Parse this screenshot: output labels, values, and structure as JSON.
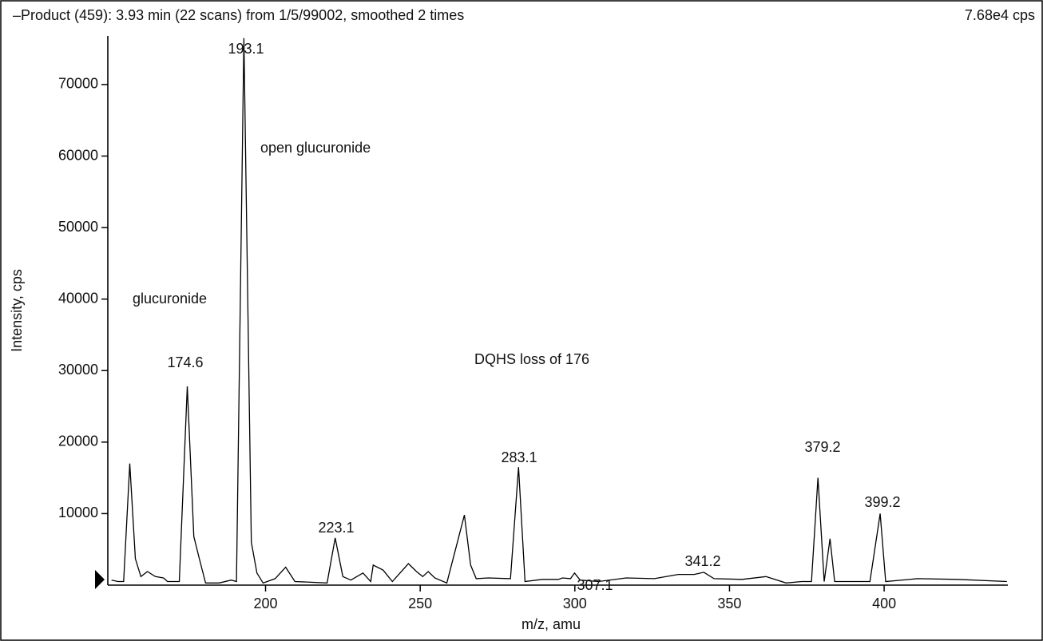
{
  "chart_data": {
    "type": "line",
    "title": "–Product (459): 3.93 min (22 scans) from 1/5/99002, smoothed 2 times",
    "subtitle": "7.68e4 cps",
    "xlabel": "m/z, amu",
    "ylabel": "Intensity, cps",
    "color": "#000000",
    "x": [
      150.2,
      152.3,
      154.1,
      156.1,
      157.9,
      159.7,
      161.8,
      164.4,
      167,
      168.3,
      172.1,
      174.7,
      176.8,
      178.6,
      180.6,
      185,
      188.9,
      190.6,
      193.0,
      195.4,
      197.2,
      199.2,
      203.1,
      206.5,
      209.5,
      219.9,
      222.5,
      225,
      227.6,
      231.5,
      234,
      234.8,
      238,
      241,
      246.2,
      248.8,
      250.8,
      252.6,
      254.7,
      258.6,
      264.3,
      266.3,
      268.1,
      272,
      279.2,
      281.8,
      283.9,
      289.5,
      294.7,
      296,
      298.6,
      299.9,
      301.7,
      307.6,
      316.6,
      325.7,
      333.4,
      338.6,
      341.7,
      345,
      354.1,
      361.8,
      368.3,
      373.4,
      376.5,
      378.6,
      380.6,
      382.5,
      384,
      395.4,
      398.7,
      400.5,
      410.8,
      423.7,
      439.7
    ],
    "values": [
      700,
      500,
      500,
      17000,
      3700,
      1200,
      1900,
      1200,
      1000,
      500,
      500,
      27800,
      6800,
      3700,
      300,
      300,
      700,
      500,
      76500,
      6000,
      1700,
      300,
      900,
      2500,
      500,
      300,
      6600,
      1200,
      700,
      1700,
      500,
      2800,
      2100,
      500,
      3000,
      1900,
      1200,
      1900,
      1000,
      300,
      9800,
      2800,
      900,
      1000,
      900,
      16500,
      500,
      800,
      800,
      1000,
      900,
      1700,
      700,
      500,
      1000,
      900,
      1500,
      1500,
      1800,
      900,
      800,
      1200,
      300,
      500,
      500,
      15000,
      500,
      6500,
      500,
      500,
      10000,
      500,
      900,
      800,
      500
    ],
    "xlim": [
      149,
      440
    ],
    "ylim": [
      0,
      76800
    ],
    "xticks": [
      200,
      250,
      300,
      350,
      400
    ],
    "yticks": [
      10000,
      20000,
      30000,
      40000,
      50000,
      60000,
      70000
    ],
    "annotations": [
      "193.1",
      "open glucuronide",
      "glucuronide",
      "174.6",
      "DQHS loss of 176",
      "223.1",
      "283.1",
      "307.1",
      "341.2",
      "379.2",
      "399.2"
    ]
  }
}
